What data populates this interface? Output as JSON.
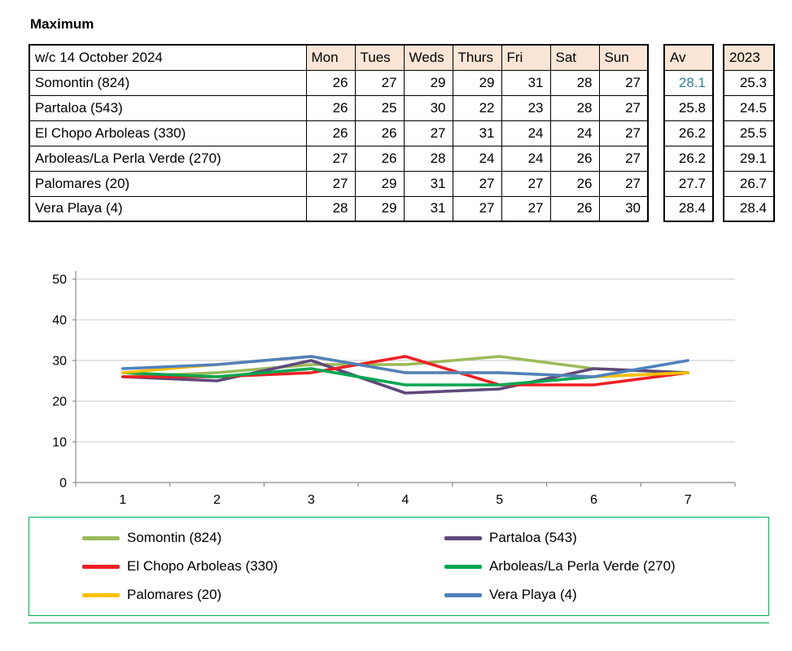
{
  "title": "Maximum",
  "colors": {
    "header_bg": "#FBE5D6",
    "avg_highlight": "#31849B",
    "legend_border": "#00B050",
    "gridline": "#C9C9C9",
    "axis": "#8C8C8C"
  },
  "table": {
    "header": {
      "week_label": "w/c 14 October 2024",
      "days": [
        "Mon",
        "Tues",
        "Weds",
        "Thurs",
        "Fri",
        "Sat",
        "Sun"
      ],
      "avg_label": "Av",
      "year_label": "2023"
    },
    "rows": [
      {
        "name": "Somontin (824)",
        "values": [
          26,
          27,
          29,
          29,
          31,
          28,
          27
        ],
        "avg": "28.1",
        "avg_highlight": true,
        "prev_year": "25.3"
      },
      {
        "name": "Partaloa (543)",
        "values": [
          26,
          25,
          30,
          22,
          23,
          28,
          27
        ],
        "avg": "25.8",
        "avg_highlight": false,
        "prev_year": "24.5"
      },
      {
        "name": "El Chopo  Arboleas (330)",
        "values": [
          26,
          26,
          27,
          31,
          24,
          24,
          27
        ],
        "avg": "26.2",
        "avg_highlight": false,
        "prev_year": "25.5"
      },
      {
        "name": "Arboleas/La Perla Verde (270)",
        "values": [
          27,
          26,
          28,
          24,
          24,
          26,
          27
        ],
        "avg": "26.2",
        "avg_highlight": false,
        "prev_year": "29.1"
      },
      {
        "name": "Palomares (20)",
        "values": [
          27,
          29,
          31,
          27,
          27,
          26,
          27
        ],
        "avg": "27.7",
        "avg_highlight": false,
        "prev_year": "26.7"
      },
      {
        "name": "Vera Playa (4)",
        "values": [
          28,
          29,
          31,
          27,
          27,
          26,
          30
        ],
        "avg": "28.4",
        "avg_highlight": false,
        "prev_year": "28.4"
      }
    ]
  },
  "chart_data": {
    "type": "line",
    "title": "",
    "xlabel": "",
    "ylabel": "",
    "categories": [
      "1",
      "2",
      "3",
      "4",
      "5",
      "6",
      "7"
    ],
    "series": [
      {
        "name": "Somontin (824)",
        "color": "#9BBB59",
        "values": [
          26,
          27,
          29,
          29,
          31,
          28,
          27
        ]
      },
      {
        "name": "Partaloa (543)",
        "color": "#5F497A",
        "values": [
          26,
          25,
          30,
          22,
          23,
          28,
          27
        ]
      },
      {
        "name": "El Chopo  Arboleas (330)",
        "color": "#ED2024",
        "values": [
          26,
          26,
          27,
          31,
          24,
          24,
          27
        ]
      },
      {
        "name": "Arboleas/La Perla Verde (270)",
        "color": "#00A650",
        "values": [
          27,
          26,
          28,
          24,
          24,
          26,
          27
        ]
      },
      {
        "name": "Palomares (20)",
        "color": "#FFC000",
        "values": [
          27,
          29,
          31,
          27,
          27,
          26,
          27
        ]
      },
      {
        "name": "Vera Playa (4)",
        "color": "#4F81BD",
        "values": [
          28,
          29,
          31,
          27,
          27,
          26,
          30
        ]
      }
    ],
    "ylim": [
      0,
      50
    ],
    "yticks": [
      0,
      10,
      20,
      30,
      40,
      50
    ],
    "grid": true,
    "legend_position": "bottom"
  }
}
